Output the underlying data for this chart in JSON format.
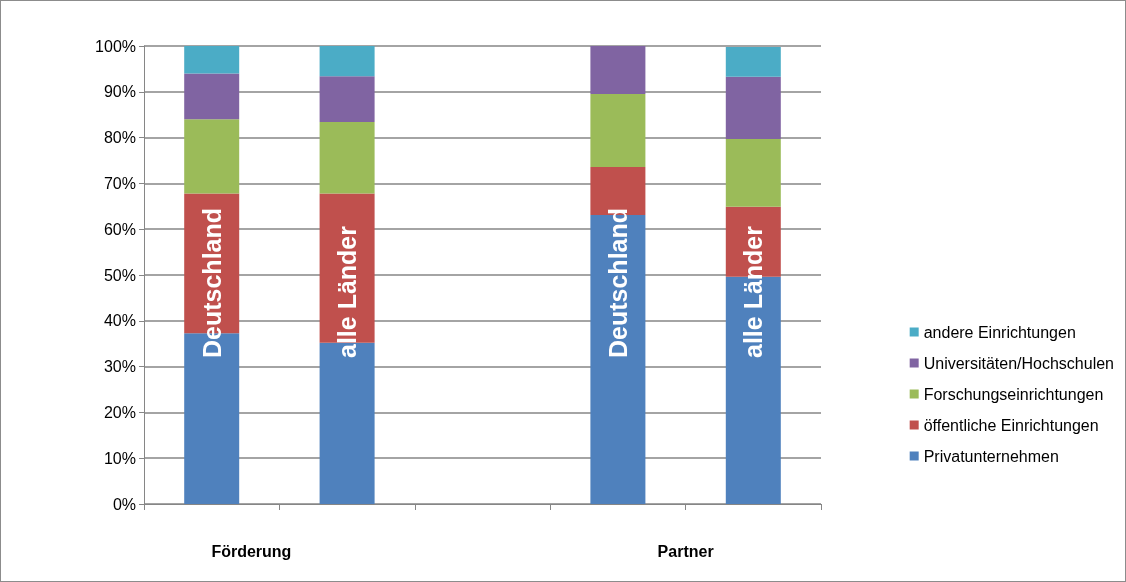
{
  "chart_data": {
    "type": "bar",
    "stacked": true,
    "categories": [
      "Deutschland",
      "alle Länder",
      null,
      "Deutschland",
      "alle Länder"
    ],
    "series": [
      {
        "name": "Privatunternehmen",
        "color": "#4f81bd",
        "values": [
          37.3,
          35.2,
          null,
          63.1,
          49.6
        ]
      },
      {
        "name": "öffentliche Einrichtungen",
        "color": "#c0504d",
        "values": [
          30.5,
          32.6,
          null,
          10.5,
          15.3
        ]
      },
      {
        "name": "Forschungseinrichtungen",
        "color": "#9bbb59",
        "values": [
          16.2,
          15.6,
          null,
          15.9,
          14.8
        ]
      },
      {
        "name": "Universitäten/Hochschulen",
        "color": "#8064a2",
        "values": [
          10.0,
          10.0,
          null,
          10.5,
          13.6
        ]
      },
      {
        "name": "andere Einrichtungen",
        "color": "#4bacc6",
        "values": [
          6.0,
          6.6,
          null,
          null,
          6.5
        ]
      }
    ],
    "ylim": [
      0,
      100
    ],
    "yticks": [
      {
        "value": 0,
        "label": "0%"
      },
      {
        "value": 10,
        "label": "10%"
      },
      {
        "value": 20,
        "label": "20%"
      },
      {
        "value": 30,
        "label": "30%"
      },
      {
        "value": 40,
        "label": "40%"
      },
      {
        "value": 50,
        "label": "50%"
      },
      {
        "value": 60,
        "label": "60%"
      },
      {
        "value": 70,
        "label": "70%"
      },
      {
        "value": 80,
        "label": "80%"
      },
      {
        "value": 90,
        "label": "90%"
      },
      {
        "value": 100,
        "label": "100%"
      }
    ],
    "annotations": [
      "Förderung",
      "Partner"
    ],
    "grid": "y",
    "legend": "right"
  }
}
